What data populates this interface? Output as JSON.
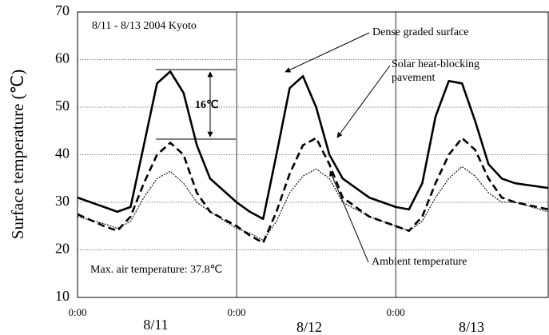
{
  "chart_data": {
    "type": "line",
    "ylabel": "Surface temperature (℃)",
    "x": [
      0,
      4,
      6,
      8,
      10,
      12,
      14,
      16,
      18,
      20,
      24,
      26,
      28,
      30,
      32,
      34,
      36,
      38,
      40,
      44,
      48,
      50,
      52,
      54,
      56,
      58,
      60,
      62,
      64,
      66,
      71
    ],
    "xlim": [
      0,
      71
    ],
    "xticks": [
      {
        "value": 0,
        "label": "0:00"
      },
      {
        "value": 24,
        "label": "0:00"
      },
      {
        "value": 48,
        "label": "0:00"
      }
    ],
    "day_labels": [
      "8/11",
      "8/12",
      "8/13"
    ],
    "ylim": [
      10,
      70
    ],
    "yticks": [
      10,
      20,
      30,
      40,
      50,
      60,
      70
    ],
    "grid": true,
    "series": [
      {
        "name": "Dense graded surface",
        "color": "#000000",
        "style": "solid",
        "values": [
          31,
          29,
          28,
          29,
          42,
          55,
          57.5,
          53,
          42,
          35,
          30,
          28,
          26.5,
          40,
          54,
          56.5,
          50,
          40,
          35,
          31,
          29,
          28.5,
          34,
          48,
          55.5,
          55,
          47,
          38,
          35,
          34,
          33
        ]
      },
      {
        "name": "Solar heat-blocking pavement",
        "color": "#000000",
        "style": "dashed",
        "values": [
          27.5,
          25,
          24,
          27,
          34,
          40,
          42.5,
          40,
          32,
          28,
          25,
          23,
          21.5,
          28,
          36,
          42,
          43.5,
          38,
          31,
          27,
          25,
          24,
          27,
          34,
          40,
          43.5,
          41,
          35,
          31,
          30,
          28.5
        ]
      },
      {
        "name": "Ambient temperature",
        "color": "#000000",
        "style": "dotted",
        "values": [
          27,
          25.5,
          24.5,
          26,
          31,
          35,
          36.5,
          34,
          30,
          28,
          24.5,
          23.5,
          22,
          26,
          32,
          35.5,
          37,
          35,
          30,
          27,
          25,
          24,
          26,
          31,
          35,
          37.5,
          35.5,
          32,
          30,
          30,
          28
        ]
      }
    ],
    "annotations": [
      "8/11 - 8/13 2004 Kyoto",
      "16℃",
      "Max. air temperature: 37.8℃"
    ]
  }
}
